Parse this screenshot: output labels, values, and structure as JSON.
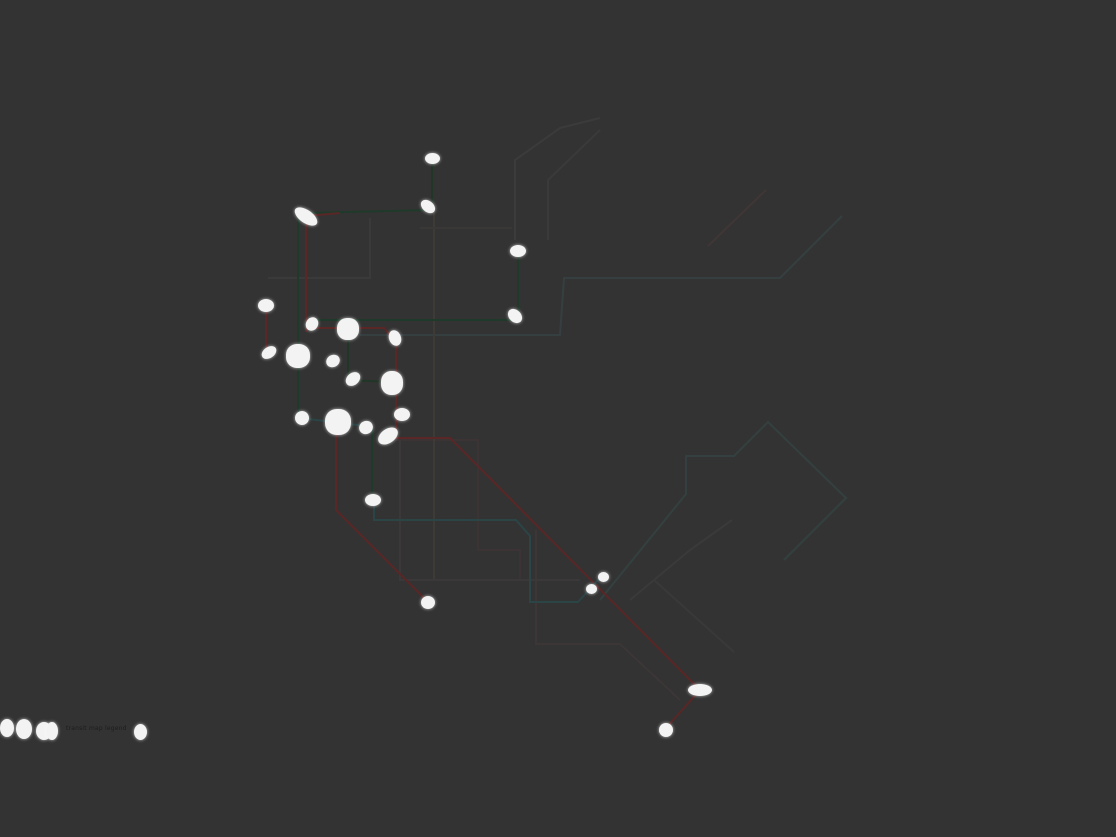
{
  "map": {
    "background": "#333333",
    "line_colors": {
      "red_route": "#5a2626",
      "green_route": "#1f3a2a",
      "dark_green_route": "#223628",
      "teal_route": "#2b4446",
      "faint_route": "#3d3d3d",
      "ghost_red_route": "#3f3333",
      "ghost_teal_route": "#334040"
    },
    "station_color": "#f3f3f3",
    "legend_text": "transit map legend"
  }
}
